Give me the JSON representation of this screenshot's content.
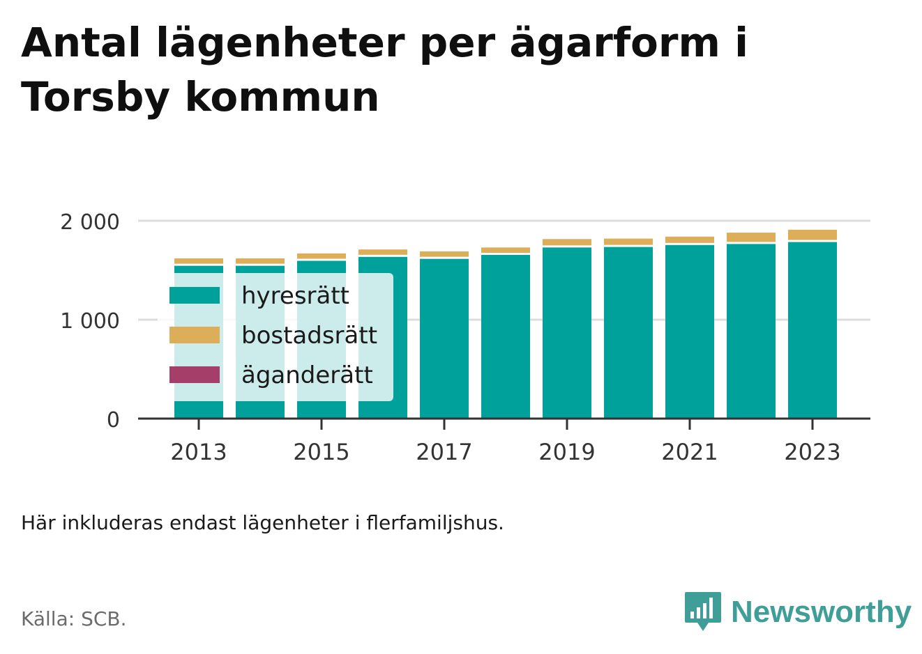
{
  "title": "Antal lägenheter per ägarform i Torsby kommun",
  "note": "Här inkluderas endast lägenheter i flerfamiljshus.",
  "source": "Källa: SCB.",
  "brand": {
    "name": "Newsworthy",
    "icon": "newsworthy-logo-icon"
  },
  "colors": {
    "hyresratt": "#00a19a",
    "bostadsratt": "#dcae5a",
    "aganderatt": "#a63e6a",
    "grid": "#dddddd",
    "axis": "#333333",
    "brand": "#3f9f98"
  },
  "chart_data": {
    "type": "bar",
    "stacked": true,
    "x": [
      2013,
      2014,
      2015,
      2016,
      2017,
      2018,
      2019,
      2020,
      2021,
      2022,
      2023
    ],
    "x_tick_labels": [
      "2013",
      "2015",
      "2017",
      "2019",
      "2021",
      "2023"
    ],
    "y_ticks": [
      0,
      1000,
      2000
    ],
    "y_tick_labels": [
      "0",
      "1 000",
      "2 000"
    ],
    "ylim": [
      0,
      2000
    ],
    "grid": true,
    "legend_position": "bottom-left, inside plot",
    "series": [
      {
        "name": "hyresrätt",
        "color": "#00a19a",
        "values": [
          1545,
          1545,
          1595,
          1635,
          1615,
          1655,
          1730,
          1735,
          1755,
          1765,
          1785
        ]
      },
      {
        "name": "bostadsrätt",
        "color": "#dcae5a",
        "values": [
          75,
          75,
          75,
          75,
          75,
          75,
          85,
          85,
          85,
          115,
          125
        ]
      },
      {
        "name": "äganderätt",
        "color": "#a63e6a",
        "values": [
          0,
          0,
          0,
          0,
          0,
          0,
          0,
          0,
          0,
          0,
          0
        ]
      }
    ]
  }
}
